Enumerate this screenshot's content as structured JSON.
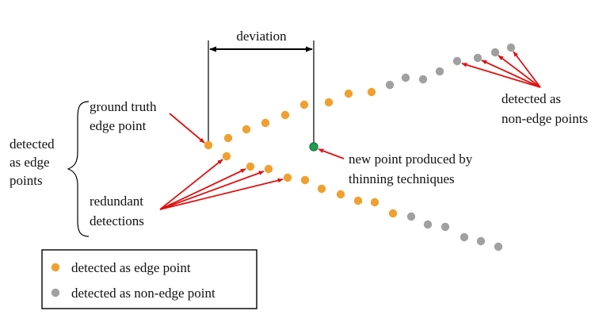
{
  "labels": {
    "deviation": "deviation",
    "ground_truth_line1": "ground truth",
    "ground_truth_line2": "edge point",
    "detected_edge_line1": "detected",
    "detected_edge_line2": "as edge",
    "detected_edge_line3": "points",
    "redundant_line1": "redundant",
    "redundant_line2": "detections",
    "new_point_line1": "new point produced by",
    "new_point_line2": "thinning techniques",
    "non_edge_line1": "detected as",
    "non_edge_line2": "non-edge points"
  },
  "legend": {
    "edge": "detected as edge point",
    "non_edge": "detected as non-edge point"
  },
  "colors": {
    "edge_point": "#F0A030",
    "non_edge_point": "#A0A0A0",
    "new_point": "#1AA050",
    "arrow": "#E01010",
    "line": "#000000"
  }
}
